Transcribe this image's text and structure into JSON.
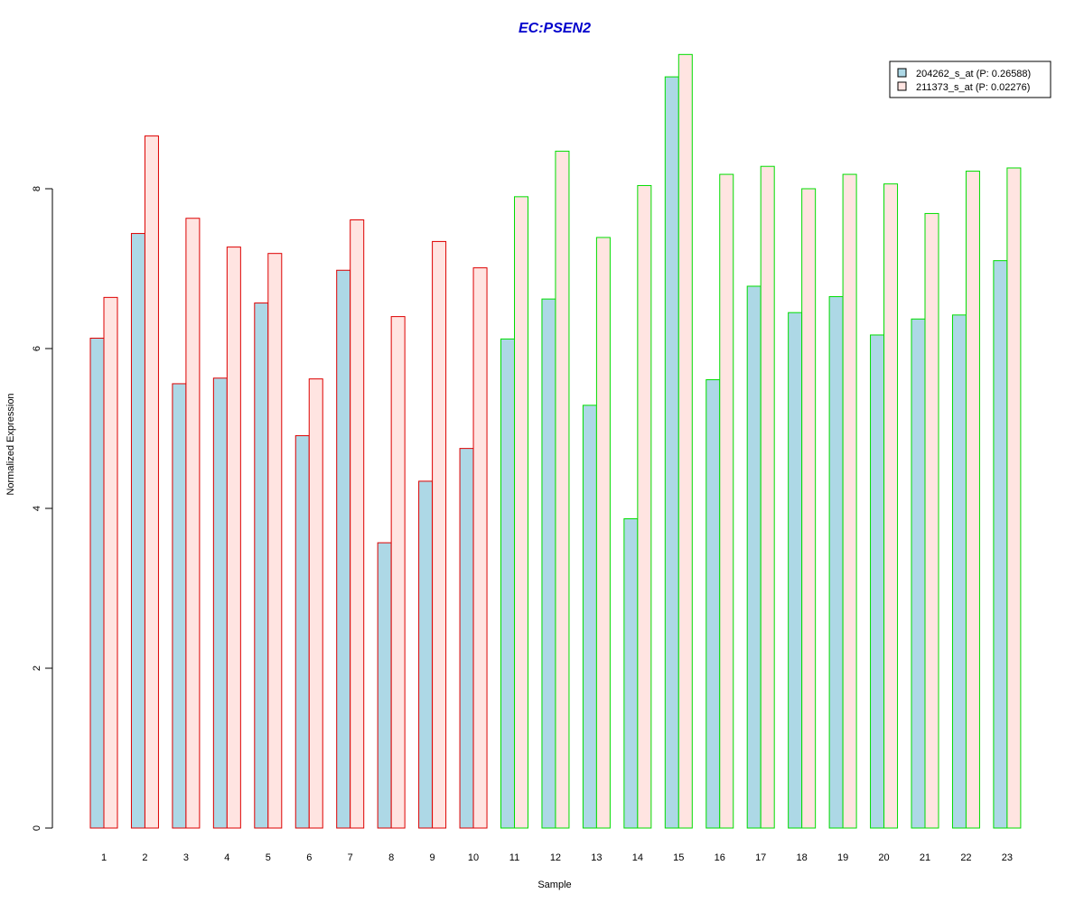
{
  "chart_data": {
    "type": "bar",
    "title": "EC:PSEN2",
    "xlabel": "Sample",
    "ylabel": "Normalized Expression",
    "categories": [
      "1",
      "2",
      "3",
      "4",
      "5",
      "6",
      "7",
      "8",
      "9",
      "10",
      "11",
      "12",
      "13",
      "14",
      "15",
      "16",
      "17",
      "18",
      "19",
      "20",
      "21",
      "22",
      "23"
    ],
    "ylim": [
      0,
      9.7
    ],
    "yticks": [
      0,
      2,
      4,
      6,
      8
    ],
    "grid": false,
    "legend_position": "top-right",
    "group_border_colors": [
      "#dd0000",
      "#dd0000",
      "#dd0000",
      "#dd0000",
      "#dd0000",
      "#dd0000",
      "#dd0000",
      "#dd0000",
      "#dd0000",
      "#dd0000",
      "#00dd00",
      "#00dd00",
      "#00dd00",
      "#00dd00",
      "#00dd00",
      "#00dd00",
      "#00dd00",
      "#00dd00",
      "#00dd00",
      "#00dd00",
      "#00dd00",
      "#00dd00",
      "#00dd00"
    ],
    "series": [
      {
        "name": "204262_s_at (P: 0.26588)",
        "fill": "#add8e6",
        "values": [
          6.13,
          7.44,
          5.56,
          5.63,
          6.57,
          4.91,
          6.98,
          3.57,
          4.34,
          4.75,
          6.12,
          6.62,
          5.29,
          3.87,
          9.4,
          5.61,
          6.78,
          6.45,
          6.65,
          6.17,
          6.37,
          6.42,
          7.1
        ]
      },
      {
        "name": "211373_s_at (P: 0.02276)",
        "fill": "#ffe4e1",
        "values": [
          6.64,
          8.66,
          7.63,
          7.27,
          7.19,
          5.62,
          7.61,
          6.4,
          7.34,
          7.01,
          7.9,
          8.47,
          7.39,
          8.04,
          9.68,
          8.18,
          8.28,
          8.0,
          8.18,
          8.06,
          7.69,
          8.22,
          8.26
        ]
      }
    ]
  }
}
